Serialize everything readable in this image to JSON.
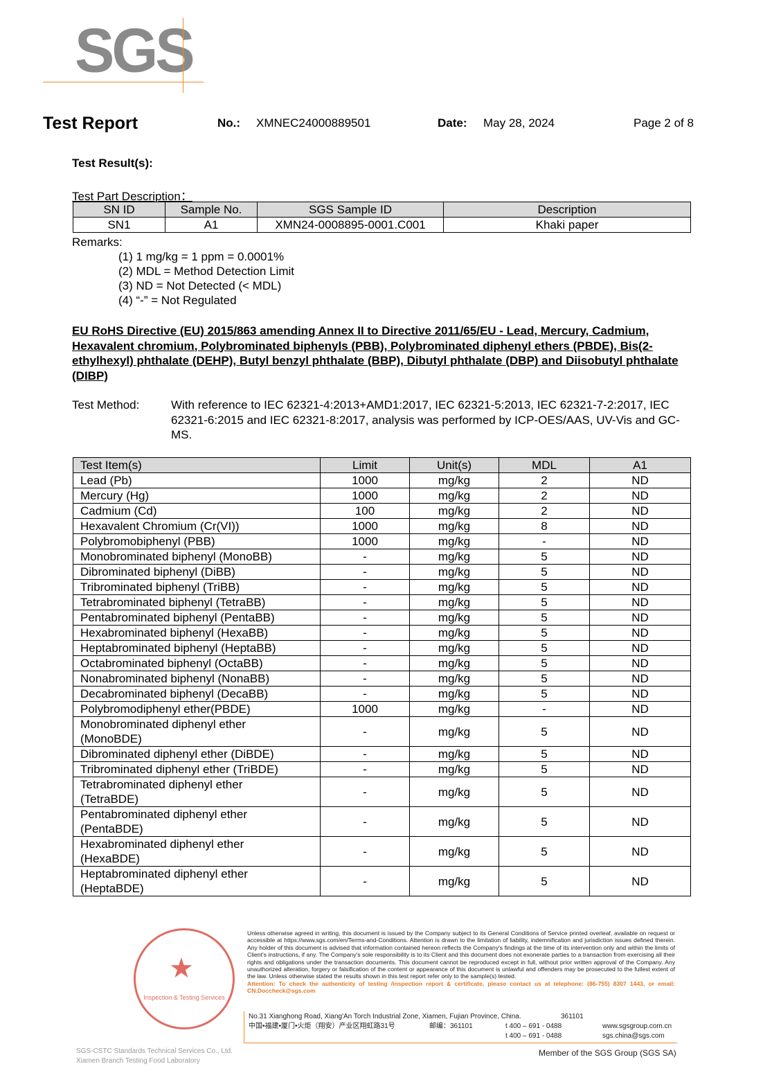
{
  "logo": "SGS",
  "header": {
    "title": "Test Report",
    "no_label": "No.:",
    "no_value": "XMNEC24000889501",
    "date_label": "Date:",
    "date_value": "May 28, 2024",
    "page": "Page 2 of 8"
  },
  "results_heading": "Test Result(s):",
  "part_desc": {
    "heading": "Test Part Description：",
    "columns": [
      "SN ID",
      "Sample No.",
      "SGS Sample ID",
      "Description"
    ],
    "rows": [
      [
        "SN1",
        "A1",
        "XMN24-0008895-0001.C001",
        "Khaki paper"
      ]
    ]
  },
  "remarks": {
    "label": "Remarks:",
    "items": [
      "(1)  1 mg/kg = 1 ppm = 0.0001%",
      "(2)  MDL = Method Detection Limit",
      "(3)  ND = Not Detected (< MDL)",
      "(4)  “-” = Not Regulated"
    ]
  },
  "directive_title": "EU RoHS Directive (EU) 2015/863 amending Annex II to Directive 2011/65/EU - Lead, Mercury, Cadmium, Hexavalent chromium, Polybrominated biphenyls (PBB), Polybrominated diphenyl ethers (PBDE), Bis(2-ethylhexyl) phthalate (DEHP), Butyl benzyl phthalate (BBP), Dibutyl phthalate (DBP) and Diisobutyl phthalate (DIBP)",
  "method": {
    "label": "Test Method:",
    "text": "With reference to IEC 62321-4:2013+AMD1:2017, IEC 62321-5:2013, IEC 62321-7-2:2017, IEC 62321-6:2015 and IEC 62321-8:2017, analysis was performed by ICP-OES/AAS, UV-Vis and GC-MS."
  },
  "results": {
    "columns": [
      "Test Item(s)",
      "Limit",
      "Unit(s)",
      "MDL",
      "A1"
    ],
    "rows": [
      [
        "Lead (Pb)",
        "1000",
        "mg/kg",
        "2",
        "ND"
      ],
      [
        "Mercury (Hg)",
        "1000",
        "mg/kg",
        "2",
        "ND"
      ],
      [
        "Cadmium (Cd)",
        "100",
        "mg/kg",
        "2",
        "ND"
      ],
      [
        "Hexavalent Chromium (Cr(VI))",
        "1000",
        "mg/kg",
        "8",
        "ND"
      ],
      [
        "Polybromobiphenyl (PBB)",
        "1000",
        "mg/kg",
        "-",
        "ND"
      ],
      [
        "Monobrominated biphenyl (MonoBB)",
        "-",
        "mg/kg",
        "5",
        "ND"
      ],
      [
        "Dibrominated biphenyl (DiBB)",
        "-",
        "mg/kg",
        "5",
        "ND"
      ],
      [
        "Tribrominated biphenyl (TriBB)",
        "-",
        "mg/kg",
        "5",
        "ND"
      ],
      [
        "Tetrabrominated biphenyl (TetraBB)",
        "-",
        "mg/kg",
        "5",
        "ND"
      ],
      [
        "Pentabrominated biphenyl (PentaBB)",
        "-",
        "mg/kg",
        "5",
        "ND"
      ],
      [
        "Hexabrominated biphenyl (HexaBB)",
        "-",
        "mg/kg",
        "5",
        "ND"
      ],
      [
        "Heptabrominated biphenyl (HeptaBB)",
        "-",
        "mg/kg",
        "5",
        "ND"
      ],
      [
        "Octabrominated biphenyl (OctaBB)",
        "-",
        "mg/kg",
        "5",
        "ND"
      ],
      [
        "Nonabrominated biphenyl (NonaBB)",
        "-",
        "mg/kg",
        "5",
        "ND"
      ],
      [
        "Decabrominated biphenyl (DecaBB)",
        "-",
        "mg/kg",
        "5",
        "ND"
      ],
      [
        "Polybromodiphenyl ether(PBDE)",
        "1000",
        "mg/kg",
        "-",
        "ND"
      ],
      [
        "Monobrominated diphenyl ether (MonoBDE)",
        "-",
        "mg/kg",
        "5",
        "ND"
      ],
      [
        "Dibrominated diphenyl ether (DiBDE)",
        "-",
        "mg/kg",
        "5",
        "ND"
      ],
      [
        "Tribrominated diphenyl ether (TriBDE)",
        "-",
        "mg/kg",
        "5",
        "ND"
      ],
      [
        "Tetrabrominated diphenyl ether (TetraBDE)",
        "-",
        "mg/kg",
        "5",
        "ND"
      ],
      [
        "Pentabrominated diphenyl ether (PentaBDE)",
        "-",
        "mg/kg",
        "5",
        "ND"
      ],
      [
        "Hexabrominated diphenyl ether (HexaBDE)",
        "-",
        "mg/kg",
        "5",
        "ND"
      ],
      [
        "Heptabrominated diphenyl ether (HeptaBDE)",
        "-",
        "mg/kg",
        "5",
        "ND"
      ]
    ]
  },
  "footer": {
    "disclaimer": "Unless otherwise agreed in writing, this document is issued by the Company subject to its General Conditions of Service printed overleaf, available on request or accessible at https://www.sgs.com/en/Terms-and-Conditions. Attention is drawn to the limitation of liability, indemnification and jurisdiction issues defined therein. Any holder of this document is advised that information contained hereon reflects the Company's findings at the time of its intervention only and within the limits of Client's instructions, if any. The Company's sole responsibility is to its Client and this document does not exonerate parties to a transaction from exercising all their rights and obligations under the transaction documents. This document cannot be reproduced except in full, without prior written approval of the Company. Any unauthorized alteration, forgery or falsification of the content or appearance of this document is unlawful and offenders may be prosecuted to the fullest extent of the law. Unless otherwise stated the results shown in this test report refer only to the sample(s) tested.",
    "attention": "Attention: To check the authenticity of testing /inspection report & certificate, please contact us at telephone: (86-755) 8307 1443, or email: CN.Doccheck@sgs.com",
    "company_en": "SGS-CSTC Standards Technical Services Co., Ltd.",
    "company_branch": "Xiamen Branch Testing Food Laboratory",
    "address_en": "No.31 Xianghong Road, Xiang'An Torch Industrial Zone, Xiamen, Fujian Province, China.",
    "postcode_en": "361101",
    "address_cn": "中国•福建•厦门•火炬（翔安）产业区翔虹路31号",
    "postcode_cn": "邮编：361101",
    "tel1": "t 400 – 691 - 0488",
    "tel2": "t 400 – 691 - 0488",
    "web": "www.sgsgroup.com.cn",
    "email": "sgs.china@sgs.com",
    "member": "Member of the SGS Group (SGS SA)",
    "stamp_text": "Inspection & Testing Services"
  },
  "colors": {
    "accent": "#f08a24",
    "stamp": "#d9473a",
    "header_fill": "#d9d9d9"
  }
}
